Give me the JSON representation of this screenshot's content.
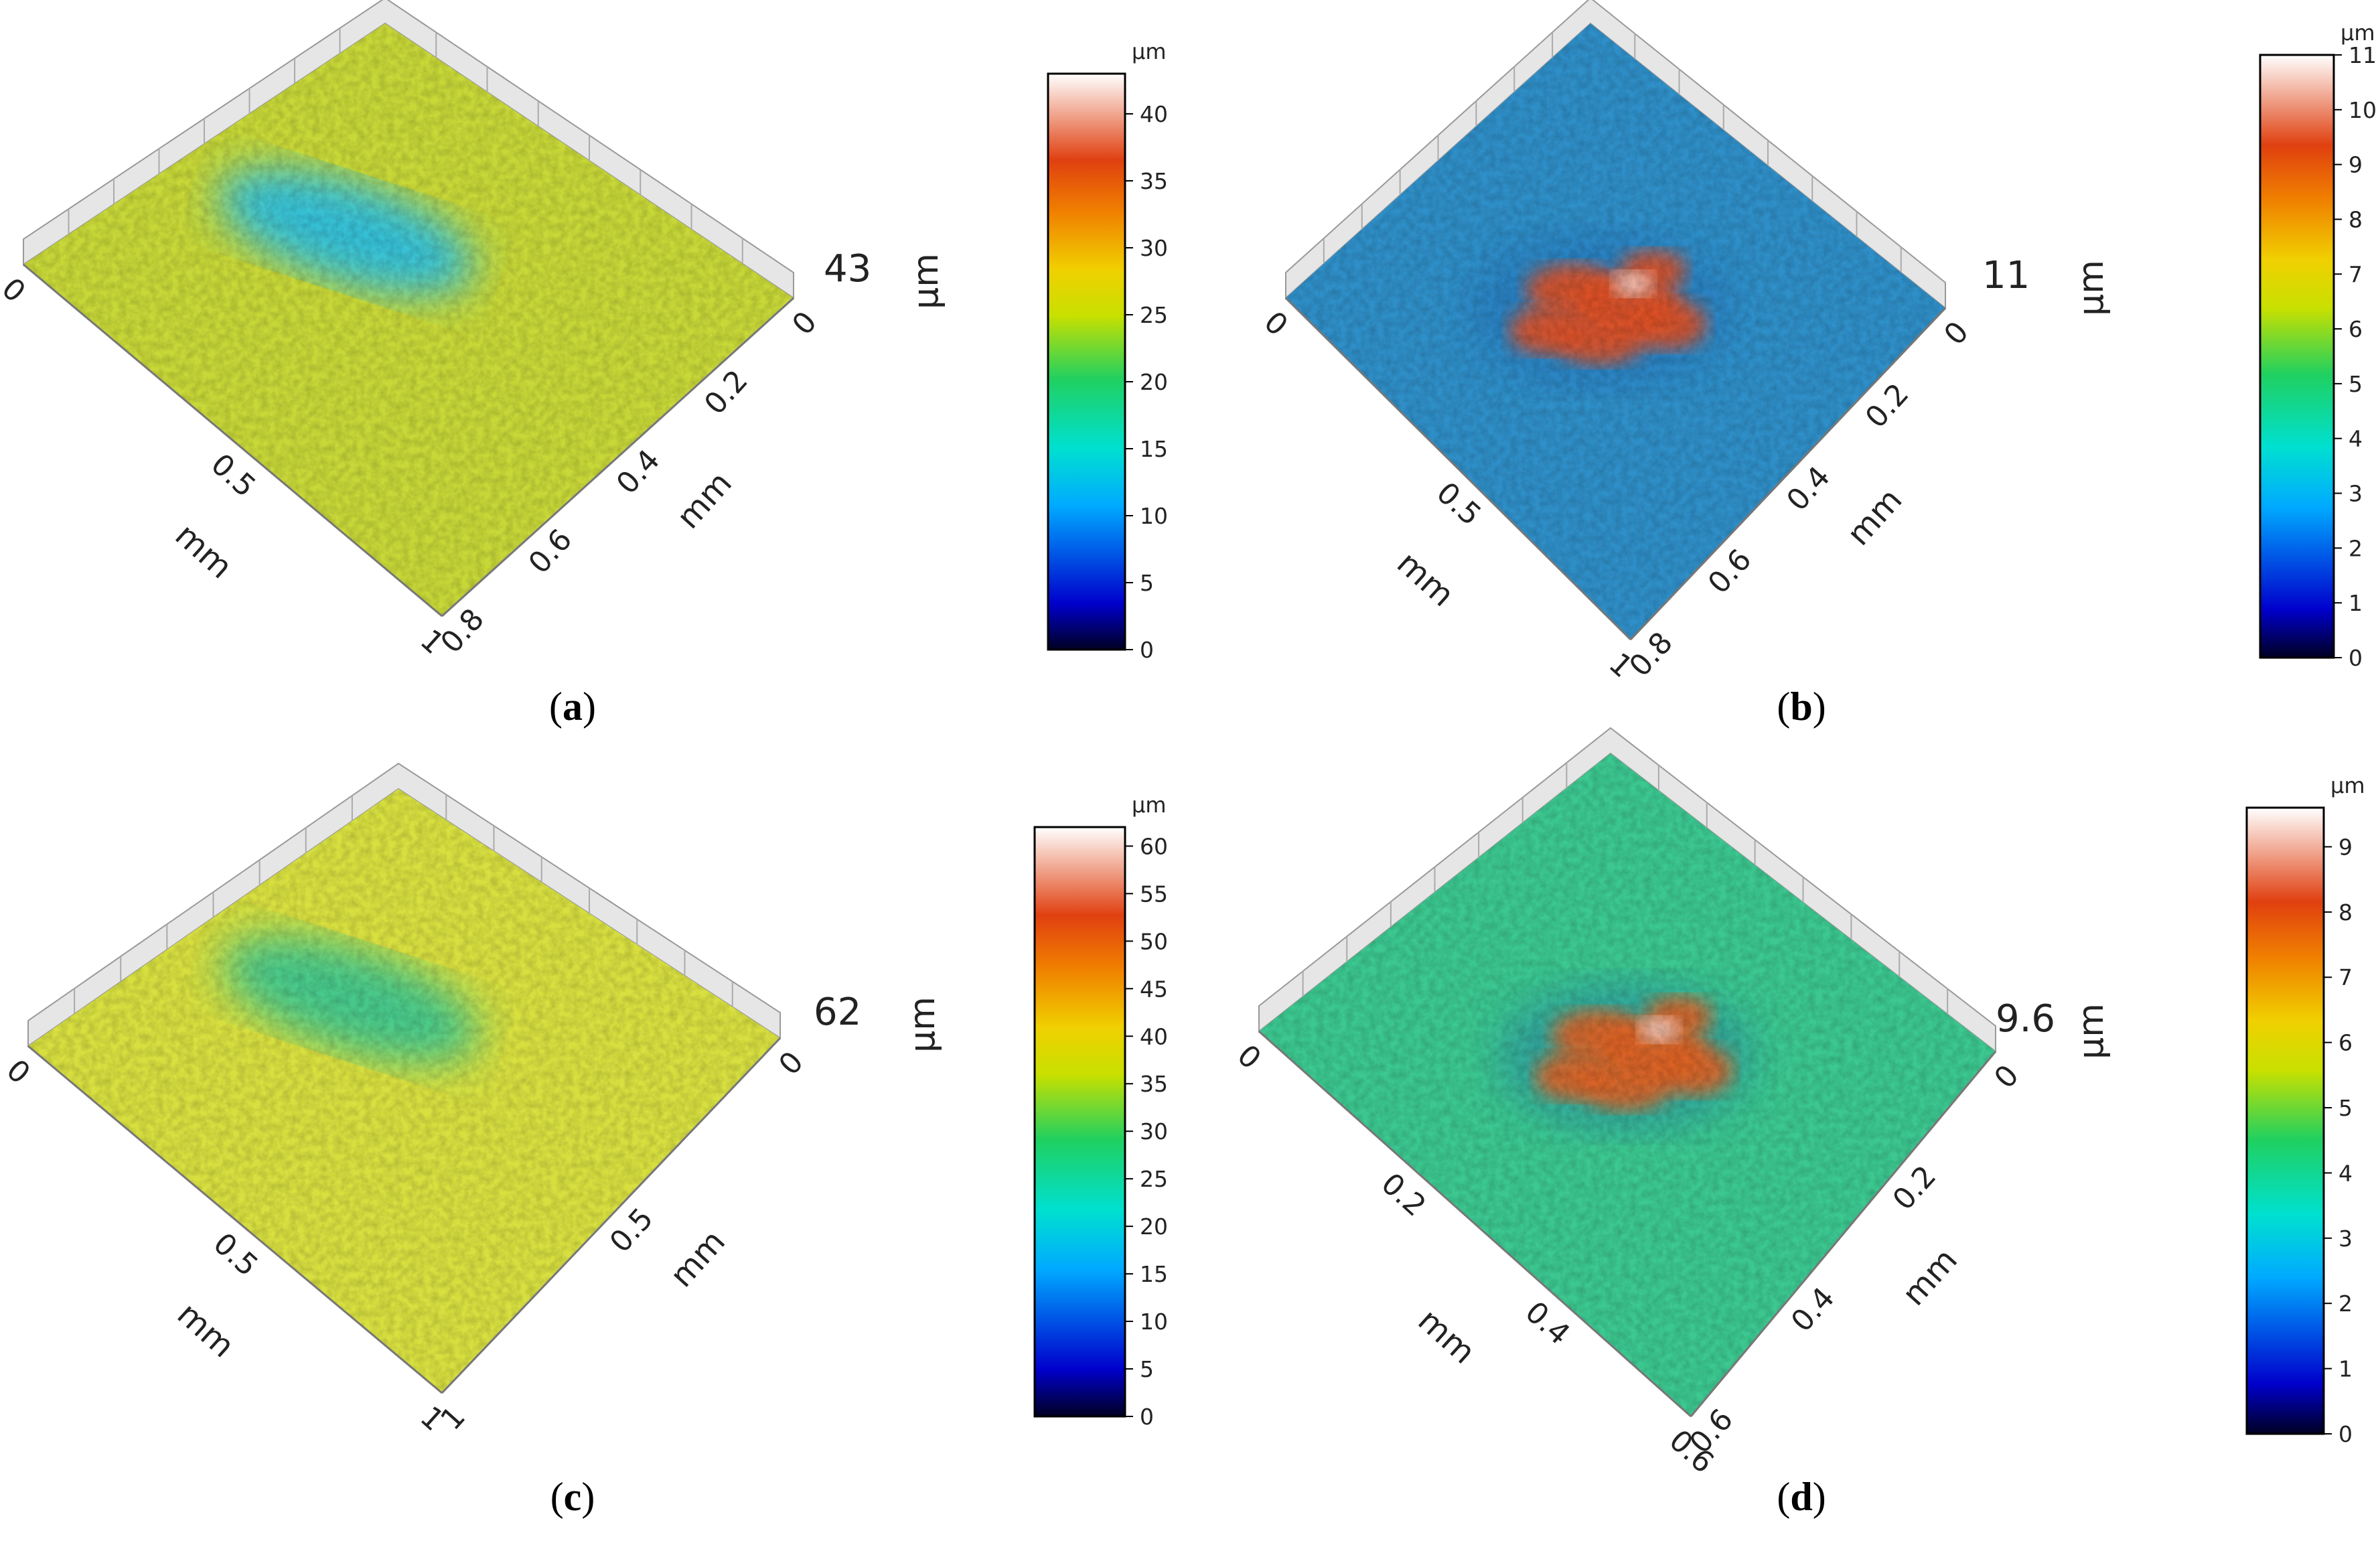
{
  "figure": {
    "description_unit": "mm",
    "colormap": [
      "#000022",
      "#0000cc",
      "#00aaff",
      "#00e0d0",
      "#20d060",
      "#c8e000",
      "#f0d000",
      "#f08000",
      "#e04010",
      "#ffffff"
    ]
  },
  "chart_data": [
    {
      "type": "surface3d",
      "panel": "a",
      "z_max_label": "43",
      "z_unit": "µm",
      "x_axis": {
        "ticks": [
          "0",
          "0.5",
          "1"
        ],
        "label": "mm"
      },
      "y_axis": {
        "ticks": [
          "0",
          "0.2",
          "0.4",
          "0.6",
          "0.8"
        ],
        "label": "mm"
      },
      "colorbar": {
        "unit": "µm",
        "min": 0,
        "max": 43,
        "ticks": [
          0,
          5,
          10,
          15,
          20,
          25,
          30,
          35,
          40
        ]
      },
      "surface": {
        "base_color": "#c8d838",
        "feature": "shallow elongated depression (blue) near front-left",
        "feature_color": "#2ec0e0"
      }
    },
    {
      "type": "surface3d",
      "panel": "b",
      "z_max_label": "11",
      "z_unit": "µm",
      "x_axis": {
        "ticks": [
          "0",
          "0.5",
          "1"
        ],
        "label": "mm"
      },
      "y_axis": {
        "ticks": [
          "0",
          "0.2",
          "0.4",
          "0.6",
          "0.8"
        ],
        "label": "mm"
      },
      "colorbar": {
        "unit": "µm",
        "min": 0,
        "max": 11,
        "ticks": [
          0,
          1,
          2,
          3,
          4,
          5,
          6,
          7,
          8,
          9,
          10,
          11
        ]
      },
      "surface": {
        "base_color": "#2f8fc8",
        "feature": "central raised peaks (red/orange)",
        "feature_color": "#e05020"
      }
    },
    {
      "type": "surface3d",
      "panel": "c",
      "z_max_label": "62",
      "z_unit": "µm",
      "x_axis": {
        "ticks": [
          "0",
          "0.5",
          "1"
        ],
        "label": "mm"
      },
      "y_axis": {
        "ticks": [
          "0",
          "0.5",
          "1"
        ],
        "label": "mm"
      },
      "colorbar": {
        "unit": "µm",
        "min": 0,
        "max": 62,
        "ticks": [
          0,
          5,
          10,
          15,
          20,
          25,
          30,
          35,
          40,
          45,
          50,
          55,
          60
        ]
      },
      "surface": {
        "base_color": "#d8e040",
        "feature": "shallow elongated groove (green)",
        "feature_color": "#40c890"
      }
    },
    {
      "type": "surface3d",
      "panel": "d",
      "z_max_label": "9.6",
      "z_unit": "µm",
      "x_axis": {
        "ticks": [
          "0",
          "0.2",
          "0.4",
          "0.6"
        ],
        "label": "mm"
      },
      "y_axis": {
        "ticks": [
          "0",
          "0.2",
          "0.4",
          "0.6"
        ],
        "label": "mm"
      },
      "colorbar": {
        "unit": "µm",
        "min": 0,
        "max": 9.6,
        "ticks": [
          0,
          1,
          2,
          3,
          4,
          5,
          6,
          7,
          8,
          9
        ]
      },
      "surface": {
        "base_color": "#3cc890",
        "feature": "central raised peaks (orange/red)",
        "feature_color": "#e06020"
      }
    }
  ],
  "panel_labels": [
    "a",
    "b",
    "c",
    "d"
  ]
}
